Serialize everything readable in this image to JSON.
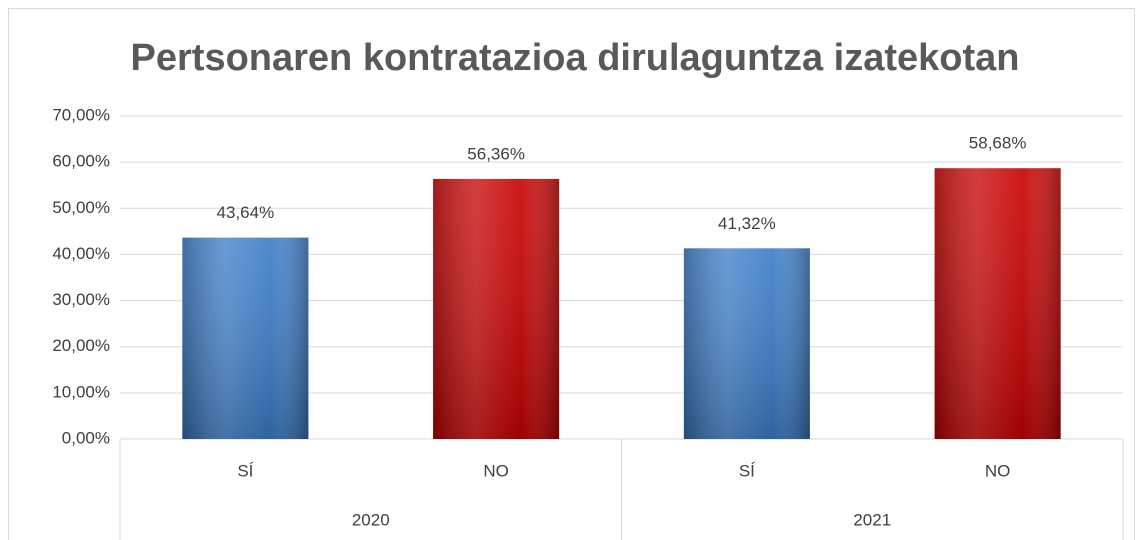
{
  "chart_data": {
    "type": "bar",
    "title": "Pertsonaren kontratazioa dirulaguntza izatekotan",
    "categories": [
      "SÍ",
      "NO",
      "SÍ",
      "NO"
    ],
    "groups": [
      {
        "name": "2020",
        "size": 2
      },
      {
        "name": "2021",
        "size": 2
      }
    ],
    "values": [
      43.64,
      56.36,
      41.32,
      58.68
    ],
    "value_labels": [
      "43,64%",
      "56,36%",
      "41,32%",
      "58,68%"
    ],
    "colors": [
      "#3a7cc8",
      "#c80000",
      "#3a7cc8",
      "#c80000"
    ],
    "ylim": [
      0,
      70
    ],
    "yticks": [
      {
        "value": 0,
        "label": "0,00%"
      },
      {
        "value": 10,
        "label": "10,00%"
      },
      {
        "value": 20,
        "label": "20,00%"
      },
      {
        "value": 30,
        "label": "30,00%"
      },
      {
        "value": 40,
        "label": "40,00%"
      },
      {
        "value": 50,
        "label": "50,00%"
      },
      {
        "value": 60,
        "label": "60,00%"
      },
      {
        "value": 70,
        "label": "70,00%"
      }
    ],
    "grid": true
  }
}
